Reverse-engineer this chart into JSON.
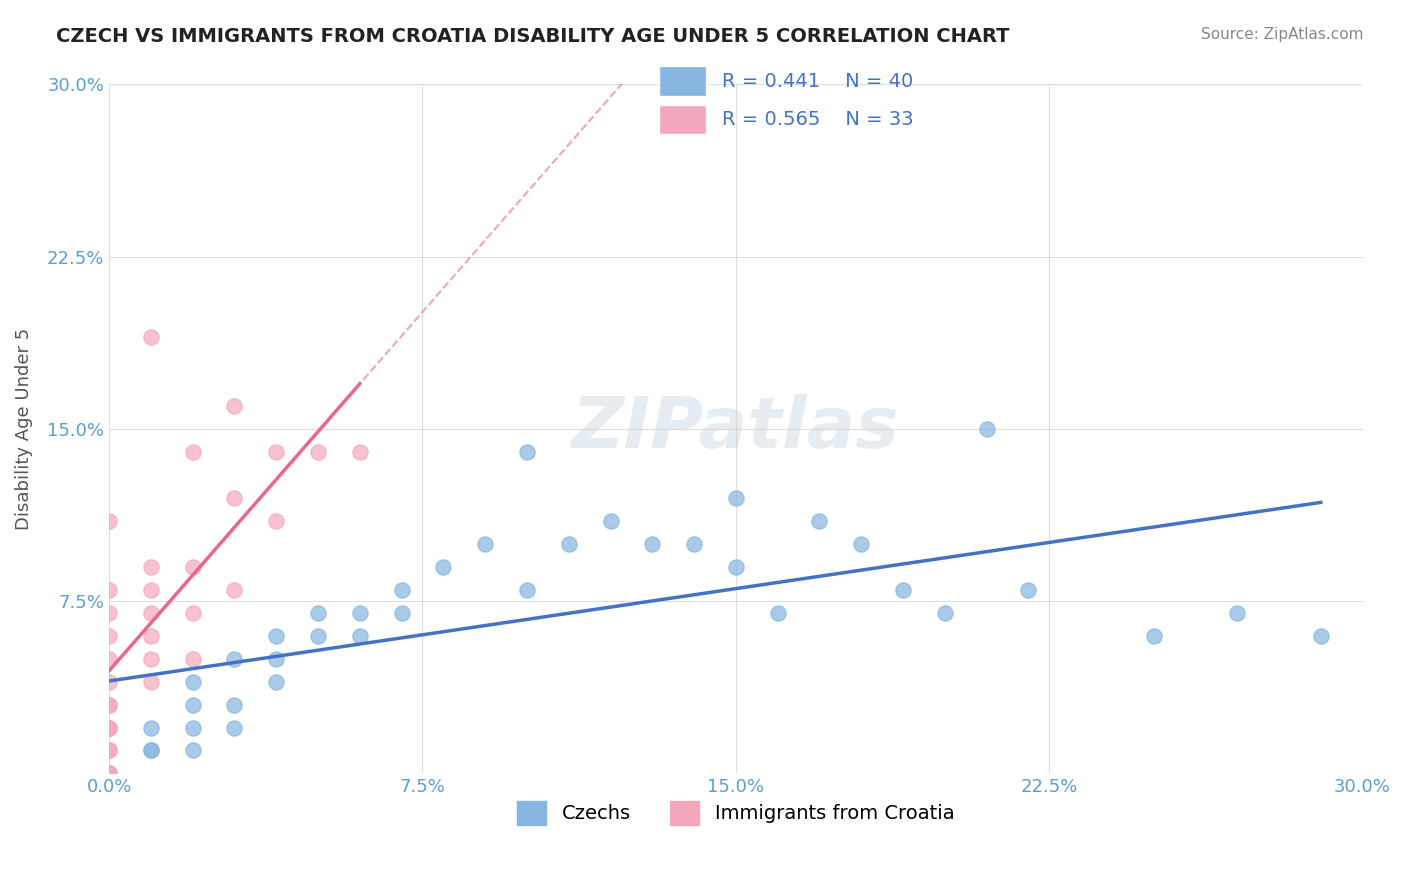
{
  "title": "CZECH VS IMMIGRANTS FROM CROATIA DISABILITY AGE UNDER 5 CORRELATION CHART",
  "source": "Source: ZipAtlas.com",
  "xlabel": "",
  "ylabel": "Disability Age Under 5",
  "xlim": [
    0.0,
    0.3
  ],
  "ylim": [
    0.0,
    0.3
  ],
  "x_tick_labels": [
    "0.0%",
    "7.5%",
    "15.0%",
    "22.5%",
    "30.0%"
  ],
  "x_tick_values": [
    0.0,
    0.075,
    0.15,
    0.225,
    0.3
  ],
  "y_tick_labels": [
    "",
    "7.5%",
    "15.0%",
    "22.5%",
    "30.0%"
  ],
  "y_tick_values": [
    0.0,
    0.075,
    0.15,
    0.225,
    0.3
  ],
  "legend_label1": "Czechs",
  "legend_label2": "Immigrants from Croatia",
  "r1": 0.441,
  "n1": 40,
  "r2": 0.565,
  "n2": 33,
  "color_czech": "#85b5e0",
  "color_croatia": "#f4a7bb",
  "trendline_czech_color": "#4472c4",
  "trendline_croatia_color": "#e8688a",
  "watermark": "ZIPatlas",
  "czech_x": [
    0.0,
    0.01,
    0.01,
    0.01,
    0.02,
    0.02,
    0.02,
    0.02,
    0.03,
    0.03,
    0.03,
    0.04,
    0.04,
    0.04,
    0.05,
    0.05,
    0.06,
    0.06,
    0.07,
    0.07,
    0.08,
    0.09,
    0.1,
    0.1,
    0.11,
    0.12,
    0.13,
    0.14,
    0.15,
    0.15,
    0.16,
    0.17,
    0.18,
    0.19,
    0.2,
    0.21,
    0.22,
    0.25,
    0.27,
    0.29
  ],
  "czech_y": [
    0.0,
    0.01,
    0.01,
    0.02,
    0.01,
    0.02,
    0.03,
    0.04,
    0.02,
    0.03,
    0.05,
    0.04,
    0.05,
    0.06,
    0.06,
    0.07,
    0.06,
    0.07,
    0.07,
    0.08,
    0.09,
    0.1,
    0.08,
    0.14,
    0.1,
    0.11,
    0.1,
    0.1,
    0.09,
    0.12,
    0.07,
    0.11,
    0.1,
    0.08,
    0.07,
    0.15,
    0.08,
    0.06,
    0.07,
    0.06
  ],
  "croatia_x": [
    0.0,
    0.0,
    0.0,
    0.0,
    0.0,
    0.0,
    0.0,
    0.0,
    0.0,
    0.0,
    0.0,
    0.0,
    0.0,
    0.0,
    0.0,
    0.01,
    0.01,
    0.01,
    0.01,
    0.01,
    0.01,
    0.01,
    0.02,
    0.02,
    0.02,
    0.02,
    0.03,
    0.03,
    0.03,
    0.04,
    0.04,
    0.05,
    0.06
  ],
  "croatia_y": [
    0.0,
    0.0,
    0.01,
    0.01,
    0.02,
    0.02,
    0.02,
    0.03,
    0.03,
    0.04,
    0.05,
    0.06,
    0.07,
    0.08,
    0.11,
    0.04,
    0.05,
    0.06,
    0.07,
    0.08,
    0.09,
    0.19,
    0.05,
    0.07,
    0.09,
    0.14,
    0.08,
    0.12,
    0.16,
    0.11,
    0.14,
    0.14,
    0.14
  ]
}
